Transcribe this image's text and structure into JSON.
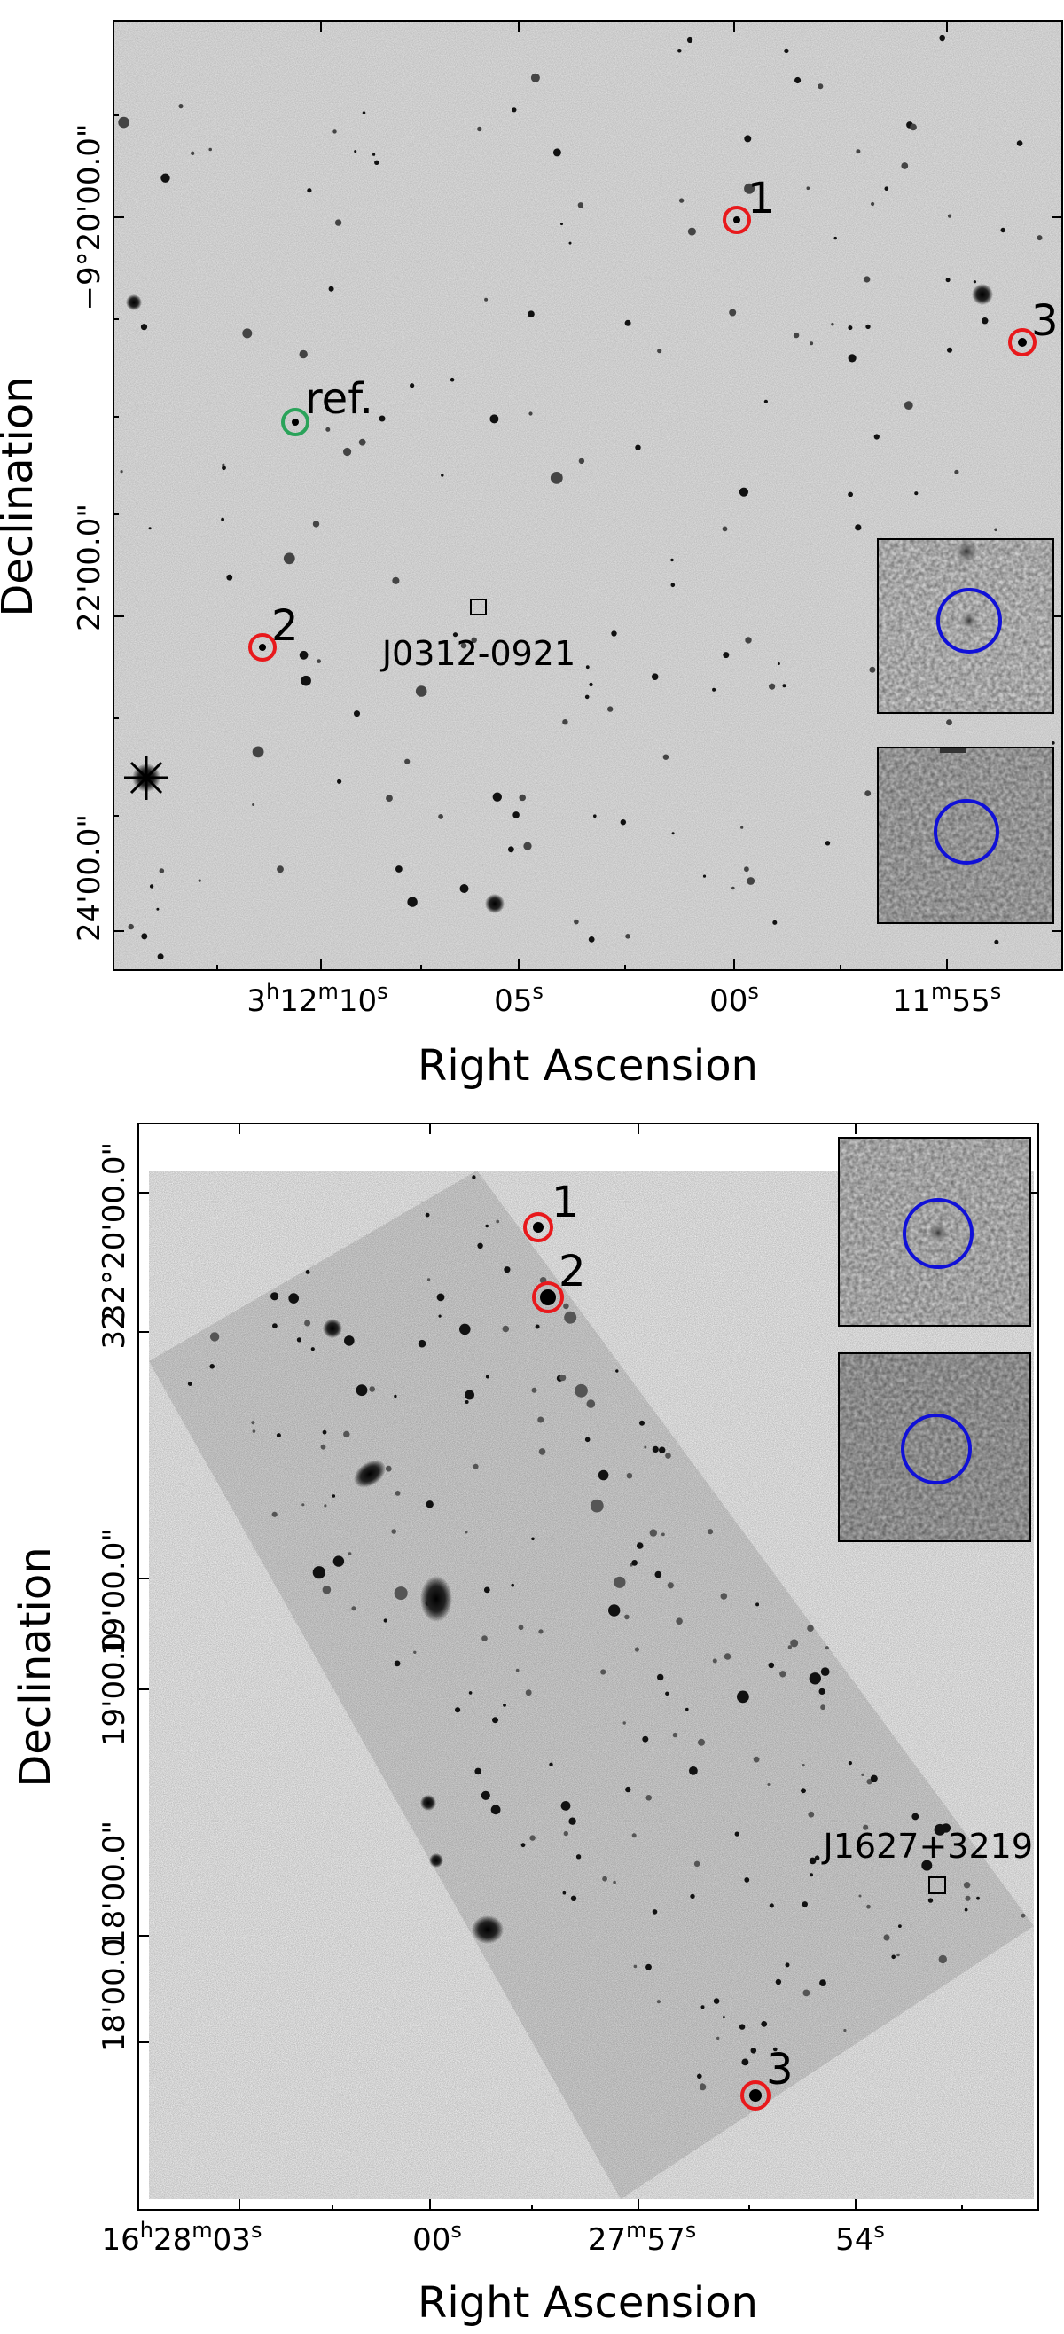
{
  "panel_top": {
    "ra_ticks": [
      "3h12m10s",
      "05s",
      "00s",
      "11m55s"
    ],
    "dec_ticks": [
      "−9°20'00.0\"",
      "22'00.0\"",
      "24'00.0\""
    ],
    "xlabel": "Right Ascension",
    "ylabel": "Declination",
    "target_label": "J0312-0921",
    "reference_label": "ref.",
    "marker_labels": [
      "1",
      "2",
      "3"
    ]
  },
  "panel_bottom": {
    "ra_ticks": [
      "16h28m03s",
      "00s",
      "27m57s",
      "54s"
    ],
    "dec_ticks": [
      "32°20'00.0\"",
      "32",
      "19'00.0\"",
      "19'00.0",
      "18'00.0\"",
      "18'00.0"
    ],
    "xlabel": "Right Ascension",
    "ylabel": "Declination",
    "target_label": "J1627+3219",
    "marker_labels": [
      "1",
      "2",
      "3"
    ]
  },
  "colors": {
    "marker": "#e8191c",
    "reference": "#2aa35a",
    "inset_circle": "#1010d8"
  }
}
